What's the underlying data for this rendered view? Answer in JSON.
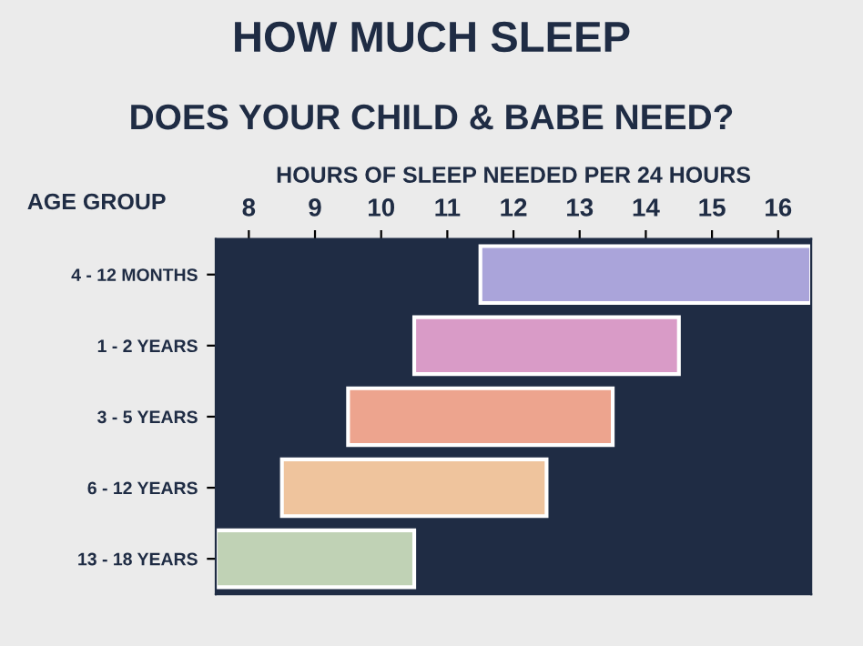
{
  "chart_data": {
    "type": "bar",
    "orientation": "horizontal",
    "title": "HOW MUCH SLEEP",
    "subtitle": "DOES YOUR CHILD & BABE NEED?",
    "xlabel": "HOURS OF SLEEP NEEDED PER 24 HOURS",
    "ylabel": "AGE GROUP",
    "categories": [
      "4 - 12 MONTHS",
      "1 - 2 YEARS",
      "3 - 5 YEARS",
      "6 - 12 YEARS",
      "13 - 18 YEARS"
    ],
    "base": [
      11.5,
      10.5,
      9.5,
      8.5,
      7.5
    ],
    "values": [
      5,
      4,
      4,
      4,
      3
    ],
    "colors": [
      "#aaa4da",
      "#d99bc7",
      "#eda48e",
      "#efc49d",
      "#c0d2b5"
    ],
    "xlim": [
      7.5,
      16.5
    ],
    "xticks": [
      8,
      9,
      10,
      11,
      12,
      13,
      14,
      15,
      16
    ],
    "grid": false,
    "legend": false
  }
}
